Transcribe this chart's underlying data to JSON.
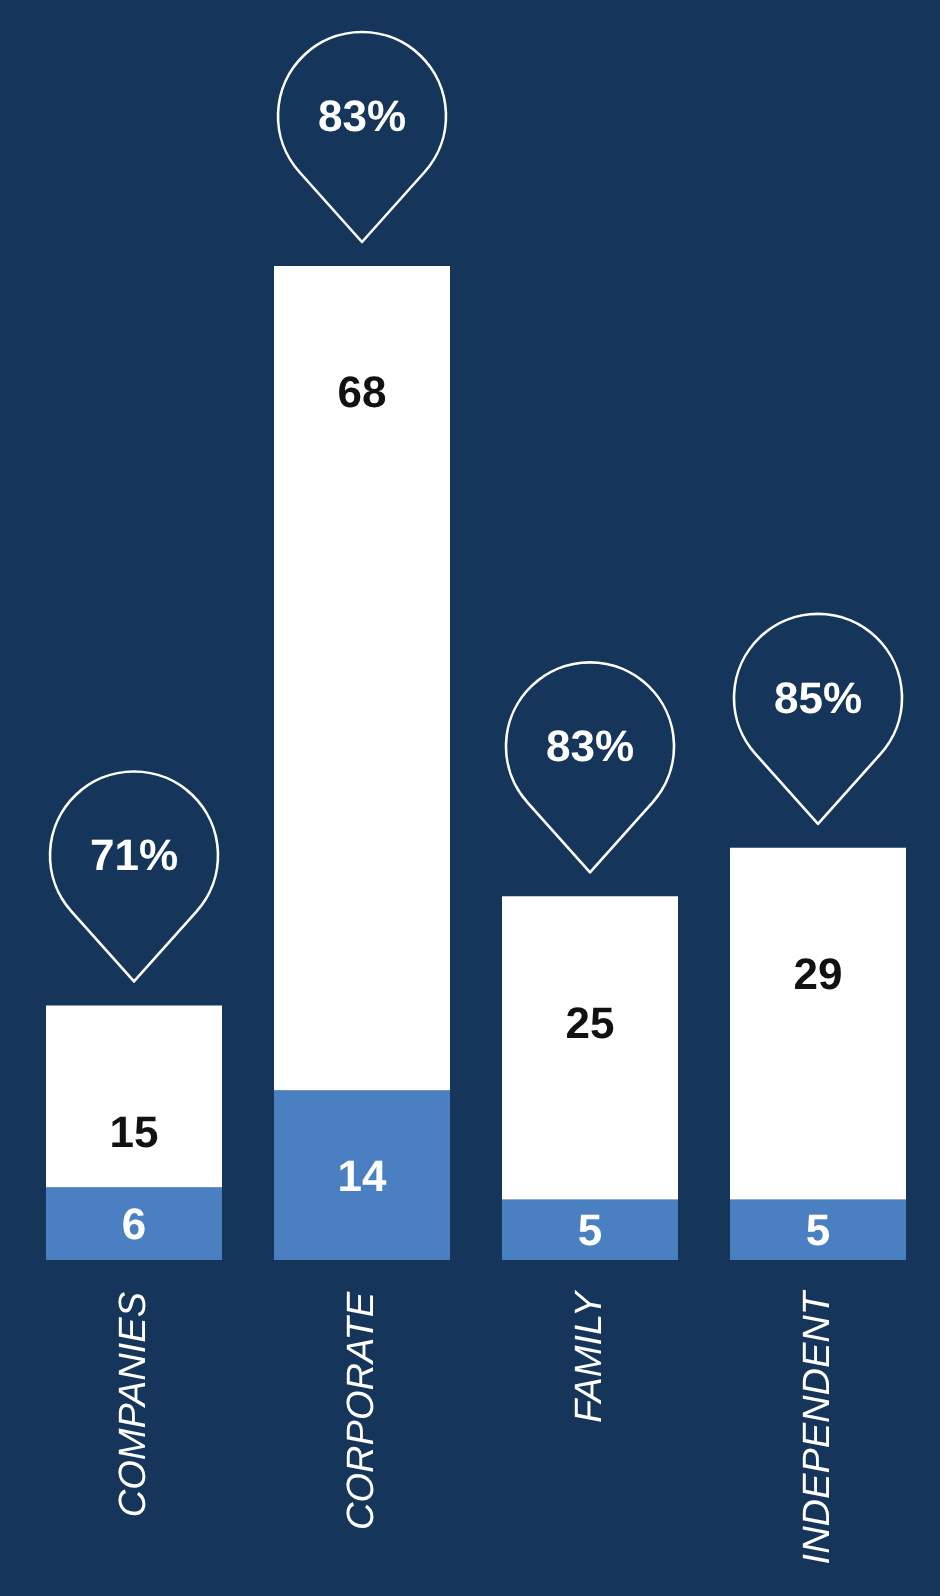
{
  "chart_data": {
    "type": "bar",
    "stacked": true,
    "data_labels": true,
    "categories": [
      "COMPANIES",
      "CORPORATE",
      "FAMILY",
      "INDEPENDENT"
    ],
    "series": [
      {
        "color": "#4a7fc1",
        "values": [
          6,
          14,
          5,
          5
        ]
      },
      {
        "color": "#ffffff",
        "values": [
          15,
          68,
          25,
          29
        ]
      }
    ],
    "annotations": [
      {
        "text": "71%",
        "x": "COMPANIES",
        "y": 21
      },
      {
        "text": "83%",
        "x": "CORPORATE",
        "y": 82
      },
      {
        "text": "83%",
        "x": "FAMILY",
        "y": 30
      },
      {
        "text": "85%",
        "x": "INDEPENDENT",
        "y": 34
      }
    ]
  }
}
